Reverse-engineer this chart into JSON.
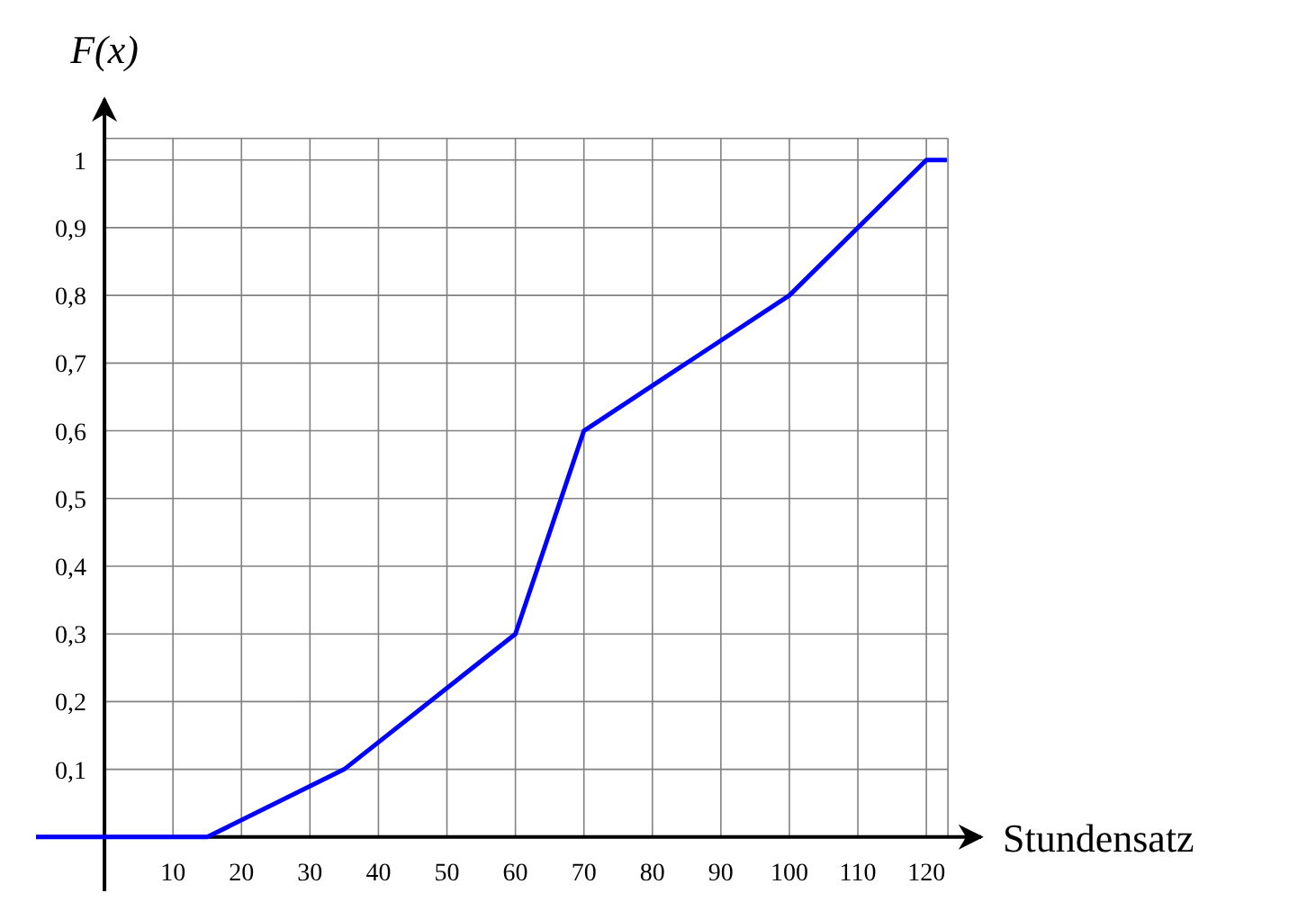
{
  "chart_data": {
    "type": "line",
    "xlabel": "Stundensatz",
    "ylabel": "F(x)",
    "xlim": [
      -10,
      128
    ],
    "ylim": [
      -0.08,
      1.09
    ],
    "xticks": [
      10,
      20,
      30,
      40,
      50,
      60,
      70,
      80,
      90,
      100,
      110,
      120
    ],
    "yticks": [
      {
        "value": 0.1,
        "label": "0,1"
      },
      {
        "value": 0.2,
        "label": "0,2"
      },
      {
        "value": 0.3,
        "label": "0,3"
      },
      {
        "value": 0.4,
        "label": "0,4"
      },
      {
        "value": 0.5,
        "label": "0,5"
      },
      {
        "value": 0.6,
        "label": "0,6"
      },
      {
        "value": 0.7,
        "label": "0,7"
      },
      {
        "value": 0.8,
        "label": "0,8"
      },
      {
        "value": 0.9,
        "label": "0,9"
      },
      1
    ],
    "grid": true,
    "marker": "none",
    "line_style": "solid",
    "series": [
      {
        "color": "#0000ff",
        "x": [
          -10,
          15,
          35,
          60,
          70,
          100,
          120,
          123
        ],
        "values": [
          0,
          0,
          0.1,
          0.3,
          0.6,
          0.8,
          1,
          1
        ]
      }
    ]
  }
}
